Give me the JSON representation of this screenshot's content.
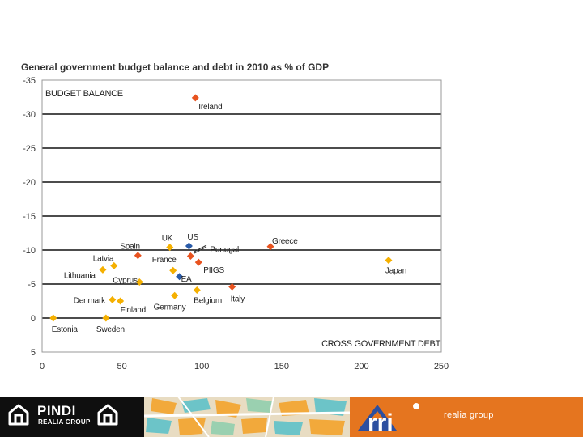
{
  "chart_data": {
    "type": "scatter",
    "title": "General government budget balance and debt in 2010 as % of GDP",
    "xlabel": "CROSS GOVERNMENT DEBT",
    "ylabel": "BUDGET BALANCE",
    "xlim": [
      0,
      250
    ],
    "ylim": [
      -35,
      5
    ],
    "y_inverted": true,
    "x_ticks": [
      0,
      50,
      100,
      150,
      200,
      250
    ],
    "y_ticks": [
      -35,
      -30,
      -25,
      -20,
      -15,
      -10,
      -5,
      0,
      5
    ],
    "grid": "horizontal",
    "colors": {
      "piigs": "#e8531f",
      "other": "#f5b000",
      "aggregate": "#2a5ba8"
    },
    "points": [
      {
        "label": "Ireland",
        "x": 96,
        "y": -32.4,
        "group": "piigs"
      },
      {
        "label": "Greece",
        "x": 143,
        "y": -10.5,
        "group": "piigs"
      },
      {
        "label": "Spain",
        "x": 60,
        "y": -9.2,
        "group": "piigs"
      },
      {
        "label": "Portugal",
        "x": 93,
        "y": -9.1,
        "group": "piigs"
      },
      {
        "label": "PIIGS",
        "x": 98,
        "y": -8.2,
        "group": "piigs"
      },
      {
        "label": "Italy",
        "x": 119,
        "y": -4.6,
        "group": "piigs"
      },
      {
        "label": "UK",
        "x": 80,
        "y": -10.4,
        "group": "other"
      },
      {
        "label": "US",
        "x": 92,
        "y": -10.6,
        "group": "aggregate"
      },
      {
        "label": "EA",
        "x": 86,
        "y": -6.1,
        "group": "aggregate"
      },
      {
        "label": "France",
        "x": 82,
        "y": -7.0,
        "group": "other"
      },
      {
        "label": "Latvia",
        "x": 45,
        "y": -7.7,
        "group": "other"
      },
      {
        "label": "Lithuania",
        "x": 38,
        "y": -7.1,
        "group": "other"
      },
      {
        "label": "Cyprus",
        "x": 61,
        "y": -5.3,
        "group": "other"
      },
      {
        "label": "Japan",
        "x": 217,
        "y": -8.5,
        "group": "other"
      },
      {
        "label": "Belgium",
        "x": 97,
        "y": -4.1,
        "group": "other"
      },
      {
        "label": "Germany",
        "x": 83,
        "y": -3.3,
        "group": "other"
      },
      {
        "label": "Denmark",
        "x": 44,
        "y": -2.7,
        "group": "other"
      },
      {
        "label": "Finland",
        "x": 49,
        "y": -2.5,
        "group": "other"
      },
      {
        "label": "Estonia",
        "x": 7,
        "y": 0.0,
        "group": "other"
      },
      {
        "label": "Sweden",
        "x": 40,
        "y": 0.0,
        "group": "other"
      }
    ]
  },
  "footer": {
    "pindi_name": "PINDI",
    "pindi_sub": "REALIA GROUP",
    "rri_sub": "realia group"
  }
}
